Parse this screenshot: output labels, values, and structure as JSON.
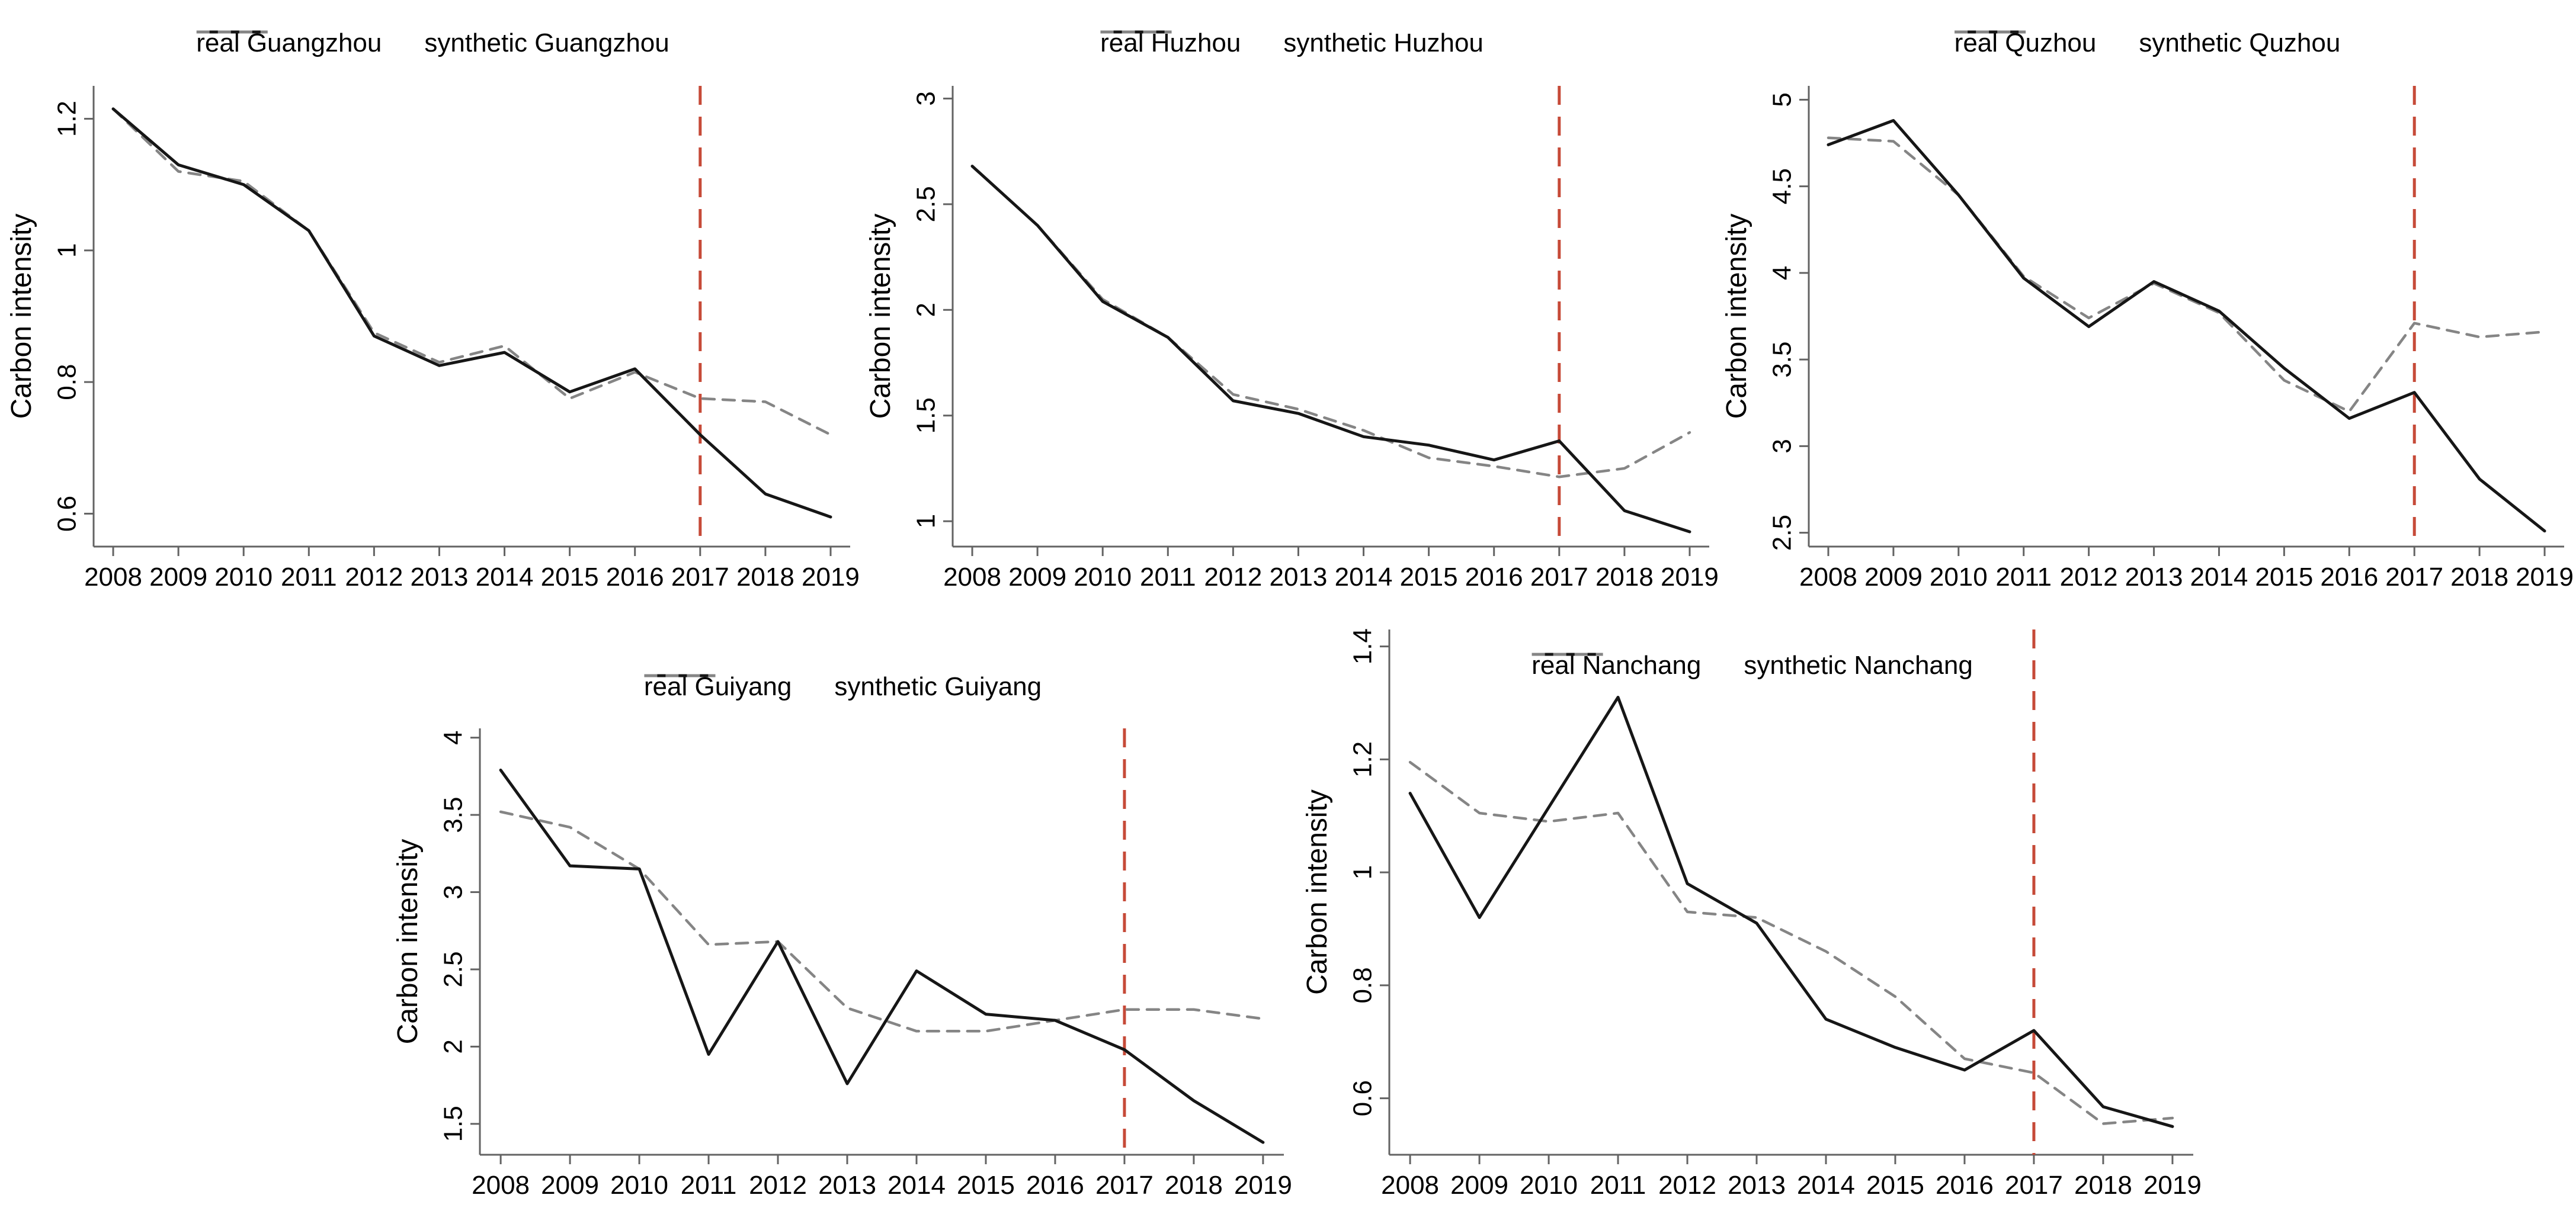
{
  "figure": {
    "background": "#ffffff",
    "description_text": ""
  },
  "colors": {
    "real_line": "#161616",
    "synthetic_line": "#858585",
    "treatment_line": "#c64a38",
    "axis": "#636363",
    "text": "#000000"
  },
  "chart_data": [
    {
      "type": "line",
      "city": "Guangzhou",
      "ylabel": "Carbon intensity",
      "xlabel": "",
      "x": [
        2008,
        2009,
        2010,
        2011,
        2012,
        2013,
        2014,
        2015,
        2016,
        2017,
        2018,
        2019
      ],
      "series": [
        {
          "name": "real Guangzhou",
          "style": "solid",
          "color": "#161616",
          "values": [
            1.215,
            1.13,
            1.1,
            1.03,
            0.87,
            0.825,
            0.845,
            0.785,
            0.82,
            0.72,
            0.63,
            0.595
          ]
        },
        {
          "name": "synthetic Guangzhou",
          "style": "dashed",
          "color": "#858585",
          "values": [
            1.215,
            1.12,
            1.105,
            1.03,
            0.875,
            0.83,
            0.855,
            0.775,
            0.815,
            0.775,
            0.77,
            0.72
          ]
        }
      ],
      "yticks": [
        0.6,
        0.8,
        1,
        1.2
      ],
      "ylim": [
        0.55,
        1.25
      ],
      "treatment_year": 2017,
      "legend_position": "top",
      "grid": false
    },
    {
      "type": "line",
      "city": "Huzhou",
      "ylabel": "Carbon intensity",
      "xlabel": "",
      "x": [
        2008,
        2009,
        2010,
        2011,
        2012,
        2013,
        2014,
        2015,
        2016,
        2017,
        2018,
        2019
      ],
      "series": [
        {
          "name": "real Huzhou",
          "style": "solid",
          "color": "#161616",
          "values": [
            2.68,
            2.4,
            2.04,
            1.87,
            1.57,
            1.51,
            1.4,
            1.36,
            1.29,
            1.38,
            1.05,
            0.95
          ]
        },
        {
          "name": "synthetic Huzhou",
          "style": "dashed",
          "color": "#858585",
          "values": [
            2.68,
            2.4,
            2.05,
            1.87,
            1.6,
            1.53,
            1.43,
            1.3,
            1.26,
            1.21,
            1.25,
            1.42
          ]
        }
      ],
      "yticks": [
        1,
        1.5,
        2,
        2.5,
        3
      ],
      "ylim": [
        0.88,
        3.06
      ],
      "treatment_year": 2017,
      "legend_position": "top",
      "grid": false
    },
    {
      "type": "line",
      "city": "Quzhou",
      "ylabel": "Carbon intensity",
      "xlabel": "",
      "x": [
        2008,
        2009,
        2010,
        2011,
        2012,
        2013,
        2014,
        2015,
        2016,
        2017,
        2018,
        2019
      ],
      "series": [
        {
          "name": "real Quzhou",
          "style": "solid",
          "color": "#161616",
          "values": [
            4.74,
            4.88,
            4.45,
            3.97,
            3.69,
            3.95,
            3.78,
            3.45,
            3.16,
            3.31,
            2.81,
            2.51
          ]
        },
        {
          "name": "synthetic Quzhou",
          "style": "dashed",
          "color": "#858585",
          "values": [
            4.78,
            4.76,
            4.45,
            3.98,
            3.74,
            3.94,
            3.77,
            3.38,
            3.2,
            3.71,
            3.63,
            3.66
          ]
        }
      ],
      "yticks": [
        2.5,
        3,
        3.5,
        4,
        4.5,
        5
      ],
      "ylim": [
        2.42,
        5.08
      ],
      "treatment_year": 2017,
      "legend_position": "top",
      "grid": false
    },
    {
      "type": "line",
      "city": "Guiyang",
      "ylabel": "Carbon intensity",
      "xlabel": "",
      "x": [
        2008,
        2009,
        2010,
        2011,
        2012,
        2013,
        2014,
        2015,
        2016,
        2017,
        2018,
        2019
      ],
      "series": [
        {
          "name": "real Guiyang",
          "style": "solid",
          "color": "#161616",
          "values": [
            3.79,
            3.17,
            3.15,
            1.95,
            2.68,
            1.76,
            2.49,
            2.21,
            2.17,
            1.98,
            1.65,
            1.38
          ]
        },
        {
          "name": "synthetic Guiyang",
          "style": "dashed",
          "color": "#858585",
          "values": [
            3.52,
            3.42,
            3.15,
            2.66,
            2.68,
            2.25,
            2.1,
            2.1,
            2.17,
            2.24,
            2.24,
            2.18
          ]
        }
      ],
      "yticks": [
        1.5,
        2,
        2.5,
        3,
        3.5,
        4
      ],
      "ylim": [
        1.3,
        4.06
      ],
      "treatment_year": 2017,
      "legend_position": "top",
      "grid": false
    },
    {
      "type": "line",
      "city": "Nanchang",
      "ylabel": "Carbon intensity",
      "xlabel": "",
      "x": [
        2008,
        2009,
        2010,
        2011,
        2012,
        2013,
        2014,
        2015,
        2016,
        2017,
        2018,
        2019
      ],
      "series": [
        {
          "name": "real Nanchang",
          "style": "solid",
          "color": "#161616",
          "values": [
            1.14,
            0.92,
            1.115,
            1.31,
            0.98,
            0.91,
            0.74,
            0.69,
            0.65,
            0.72,
            0.585,
            0.55
          ]
        },
        {
          "name": "synthetic Nanchang",
          "style": "dashed",
          "color": "#858585",
          "values": [
            1.195,
            1.105,
            1.09,
            1.105,
            0.93,
            0.92,
            0.86,
            0.78,
            0.67,
            0.645,
            0.555,
            0.565
          ]
        }
      ],
      "yticks": [
        0.6,
        0.8,
        1,
        1.2,
        1.4
      ],
      "ylim": [
        0.5,
        1.43
      ],
      "treatment_year": 2017,
      "legend_position": "inside-top",
      "grid": false
    }
  ]
}
